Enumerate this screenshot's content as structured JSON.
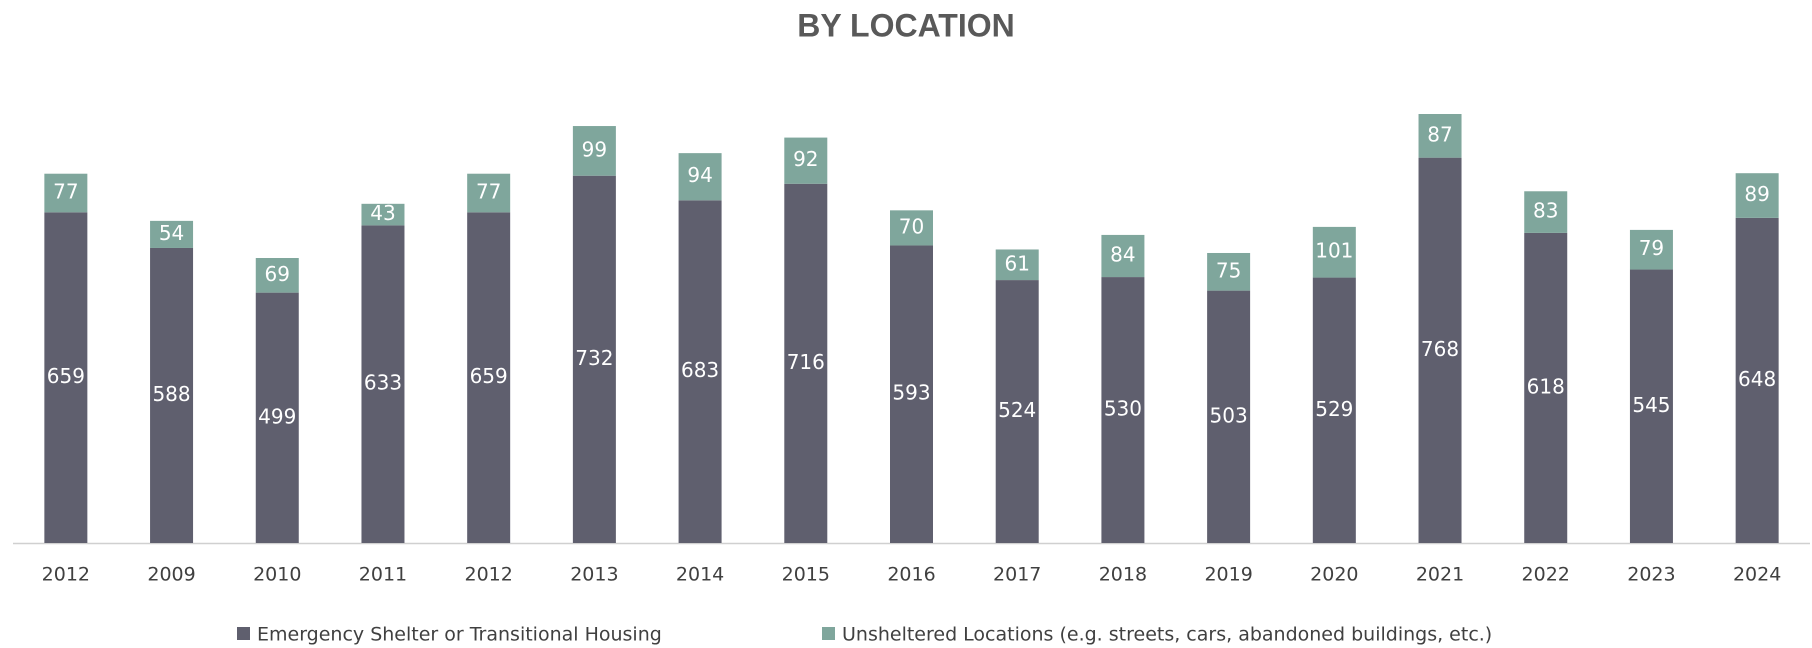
{
  "chart_data": {
    "type": "stacked_bar",
    "title": "BY LOCATION",
    "categories": [
      "2012",
      "2009",
      "2010",
      "2011",
      "2012",
      "2013",
      "2014",
      "2015",
      "2016",
      "2017",
      "2018",
      "2019",
      "2020",
      "2021",
      "2022",
      "2023",
      "2024"
    ],
    "series": [
      {
        "name": "Emergency Shelter or Transitional Housing",
        "color": "#5f5f6e",
        "values": [
          659,
          588,
          499,
          633,
          659,
          732,
          683,
          716,
          593,
          524,
          530,
          503,
          529,
          768,
          618,
          545,
          648
        ]
      },
      {
        "name": "Unsheltered  Locations (e.g. streets, cars, abandoned buildings, etc.)",
        "color": "#7fa69c",
        "values": [
          77,
          54,
          69,
          43,
          77,
          99,
          94,
          92,
          70,
          61,
          84,
          75,
          101,
          87,
          83,
          79,
          89
        ]
      }
    ],
    "legend": "bottom"
  }
}
